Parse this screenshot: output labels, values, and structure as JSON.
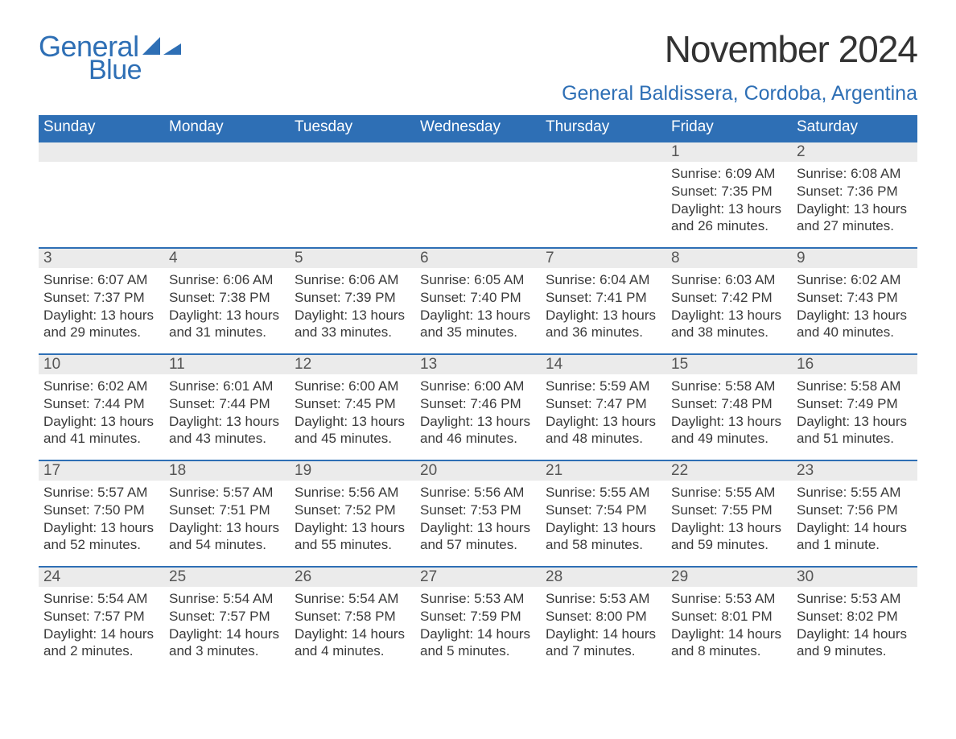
{
  "brand": {
    "word1": "General",
    "word2": "Blue",
    "logo_color": "#2e6fb5"
  },
  "header": {
    "month_title": "November 2024",
    "location": "General Baldissera, Cordoba, Argentina"
  },
  "colors": {
    "header_bg": "#2e6fb5",
    "header_text": "#ffffff",
    "daynum_bg": "#ebebeb",
    "daynum_border": "#2e6fb5",
    "body_text": "#3a3a3a",
    "page_bg": "#ffffff"
  },
  "weekdays": [
    "Sunday",
    "Monday",
    "Tuesday",
    "Wednesday",
    "Thursday",
    "Friday",
    "Saturday"
  ],
  "weeks": [
    [
      {
        "empty": true
      },
      {
        "empty": true
      },
      {
        "empty": true
      },
      {
        "empty": true
      },
      {
        "empty": true
      },
      {
        "day": "1",
        "sunrise": "Sunrise: 6:09 AM",
        "sunset": "Sunset: 7:35 PM",
        "daylight": "Daylight: 13 hours and 26 minutes."
      },
      {
        "day": "2",
        "sunrise": "Sunrise: 6:08 AM",
        "sunset": "Sunset: 7:36 PM",
        "daylight": "Daylight: 13 hours and 27 minutes."
      }
    ],
    [
      {
        "day": "3",
        "sunrise": "Sunrise: 6:07 AM",
        "sunset": "Sunset: 7:37 PM",
        "daylight": "Daylight: 13 hours and 29 minutes."
      },
      {
        "day": "4",
        "sunrise": "Sunrise: 6:06 AM",
        "sunset": "Sunset: 7:38 PM",
        "daylight": "Daylight: 13 hours and 31 minutes."
      },
      {
        "day": "5",
        "sunrise": "Sunrise: 6:06 AM",
        "sunset": "Sunset: 7:39 PM",
        "daylight": "Daylight: 13 hours and 33 minutes."
      },
      {
        "day": "6",
        "sunrise": "Sunrise: 6:05 AM",
        "sunset": "Sunset: 7:40 PM",
        "daylight": "Daylight: 13 hours and 35 minutes."
      },
      {
        "day": "7",
        "sunrise": "Sunrise: 6:04 AM",
        "sunset": "Sunset: 7:41 PM",
        "daylight": "Daylight: 13 hours and 36 minutes."
      },
      {
        "day": "8",
        "sunrise": "Sunrise: 6:03 AM",
        "sunset": "Sunset: 7:42 PM",
        "daylight": "Daylight: 13 hours and 38 minutes."
      },
      {
        "day": "9",
        "sunrise": "Sunrise: 6:02 AM",
        "sunset": "Sunset: 7:43 PM",
        "daylight": "Daylight: 13 hours and 40 minutes."
      }
    ],
    [
      {
        "day": "10",
        "sunrise": "Sunrise: 6:02 AM",
        "sunset": "Sunset: 7:44 PM",
        "daylight": "Daylight: 13 hours and 41 minutes."
      },
      {
        "day": "11",
        "sunrise": "Sunrise: 6:01 AM",
        "sunset": "Sunset: 7:44 PM",
        "daylight": "Daylight: 13 hours and 43 minutes."
      },
      {
        "day": "12",
        "sunrise": "Sunrise: 6:00 AM",
        "sunset": "Sunset: 7:45 PM",
        "daylight": "Daylight: 13 hours and 45 minutes."
      },
      {
        "day": "13",
        "sunrise": "Sunrise: 6:00 AM",
        "sunset": "Sunset: 7:46 PM",
        "daylight": "Daylight: 13 hours and 46 minutes."
      },
      {
        "day": "14",
        "sunrise": "Sunrise: 5:59 AM",
        "sunset": "Sunset: 7:47 PM",
        "daylight": "Daylight: 13 hours and 48 minutes."
      },
      {
        "day": "15",
        "sunrise": "Sunrise: 5:58 AM",
        "sunset": "Sunset: 7:48 PM",
        "daylight": "Daylight: 13 hours and 49 minutes."
      },
      {
        "day": "16",
        "sunrise": "Sunrise: 5:58 AM",
        "sunset": "Sunset: 7:49 PM",
        "daylight": "Daylight: 13 hours and 51 minutes."
      }
    ],
    [
      {
        "day": "17",
        "sunrise": "Sunrise: 5:57 AM",
        "sunset": "Sunset: 7:50 PM",
        "daylight": "Daylight: 13 hours and 52 minutes."
      },
      {
        "day": "18",
        "sunrise": "Sunrise: 5:57 AM",
        "sunset": "Sunset: 7:51 PM",
        "daylight": "Daylight: 13 hours and 54 minutes."
      },
      {
        "day": "19",
        "sunrise": "Sunrise: 5:56 AM",
        "sunset": "Sunset: 7:52 PM",
        "daylight": "Daylight: 13 hours and 55 minutes."
      },
      {
        "day": "20",
        "sunrise": "Sunrise: 5:56 AM",
        "sunset": "Sunset: 7:53 PM",
        "daylight": "Daylight: 13 hours and 57 minutes."
      },
      {
        "day": "21",
        "sunrise": "Sunrise: 5:55 AM",
        "sunset": "Sunset: 7:54 PM",
        "daylight": "Daylight: 13 hours and 58 minutes."
      },
      {
        "day": "22",
        "sunrise": "Sunrise: 5:55 AM",
        "sunset": "Sunset: 7:55 PM",
        "daylight": "Daylight: 13 hours and 59 minutes."
      },
      {
        "day": "23",
        "sunrise": "Sunrise: 5:55 AM",
        "sunset": "Sunset: 7:56 PM",
        "daylight": "Daylight: 14 hours and 1 minute."
      }
    ],
    [
      {
        "day": "24",
        "sunrise": "Sunrise: 5:54 AM",
        "sunset": "Sunset: 7:57 PM",
        "daylight": "Daylight: 14 hours and 2 minutes."
      },
      {
        "day": "25",
        "sunrise": "Sunrise: 5:54 AM",
        "sunset": "Sunset: 7:57 PM",
        "daylight": "Daylight: 14 hours and 3 minutes."
      },
      {
        "day": "26",
        "sunrise": "Sunrise: 5:54 AM",
        "sunset": "Sunset: 7:58 PM",
        "daylight": "Daylight: 14 hours and 4 minutes."
      },
      {
        "day": "27",
        "sunrise": "Sunrise: 5:53 AM",
        "sunset": "Sunset: 7:59 PM",
        "daylight": "Daylight: 14 hours and 5 minutes."
      },
      {
        "day": "28",
        "sunrise": "Sunrise: 5:53 AM",
        "sunset": "Sunset: 8:00 PM",
        "daylight": "Daylight: 14 hours and 7 minutes."
      },
      {
        "day": "29",
        "sunrise": "Sunrise: 5:53 AM",
        "sunset": "Sunset: 8:01 PM",
        "daylight": "Daylight: 14 hours and 8 minutes."
      },
      {
        "day": "30",
        "sunrise": "Sunrise: 5:53 AM",
        "sunset": "Sunset: 8:02 PM",
        "daylight": "Daylight: 14 hours and 9 minutes."
      }
    ]
  ]
}
